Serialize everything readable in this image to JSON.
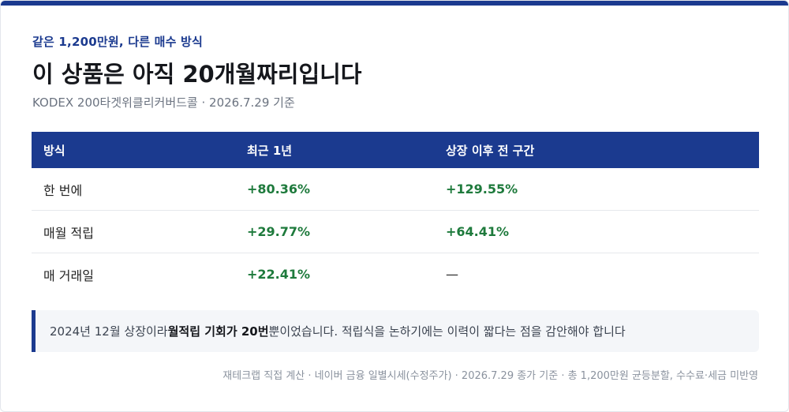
{
  "header": {
    "eyebrow": "같은 1,200만원, 다른 매수 방식",
    "title": "이 상품은 아직 20개월짜리입니다",
    "subtitle": "KODEX 200타겟위클리커버드콜 · 2026.7.29 기준"
  },
  "table": {
    "columns": [
      "방식",
      "최근 1년",
      "상장 이후 전 구간"
    ],
    "rows": [
      {
        "method": "한 번에",
        "recent_1y": "+80.36%",
        "since_listing": "+129.55%"
      },
      {
        "method": "매월 적립",
        "recent_1y": "+29.77%",
        "since_listing": "+64.41%"
      },
      {
        "method": "매 거래일",
        "recent_1y": "+22.41%",
        "since_listing": "—"
      }
    ]
  },
  "note": {
    "before": "2024년 12월 상장이라 ",
    "bold": "월적립 기회가 20번",
    "after": "뿐이었습니다. 적립식을 논하기에는 이력이 짧다는 점을 감안해야 합니다"
  },
  "footer": "재테크랩 직접 계산 · 네이버 금융 일별시세(수정주가) · 2026.7.29 종가 기준 · 총 1,200만원 균등분할, 수수료·세금 미반영",
  "colors": {
    "accent": "#1b3a8f",
    "positive": "#1e7a3c"
  }
}
